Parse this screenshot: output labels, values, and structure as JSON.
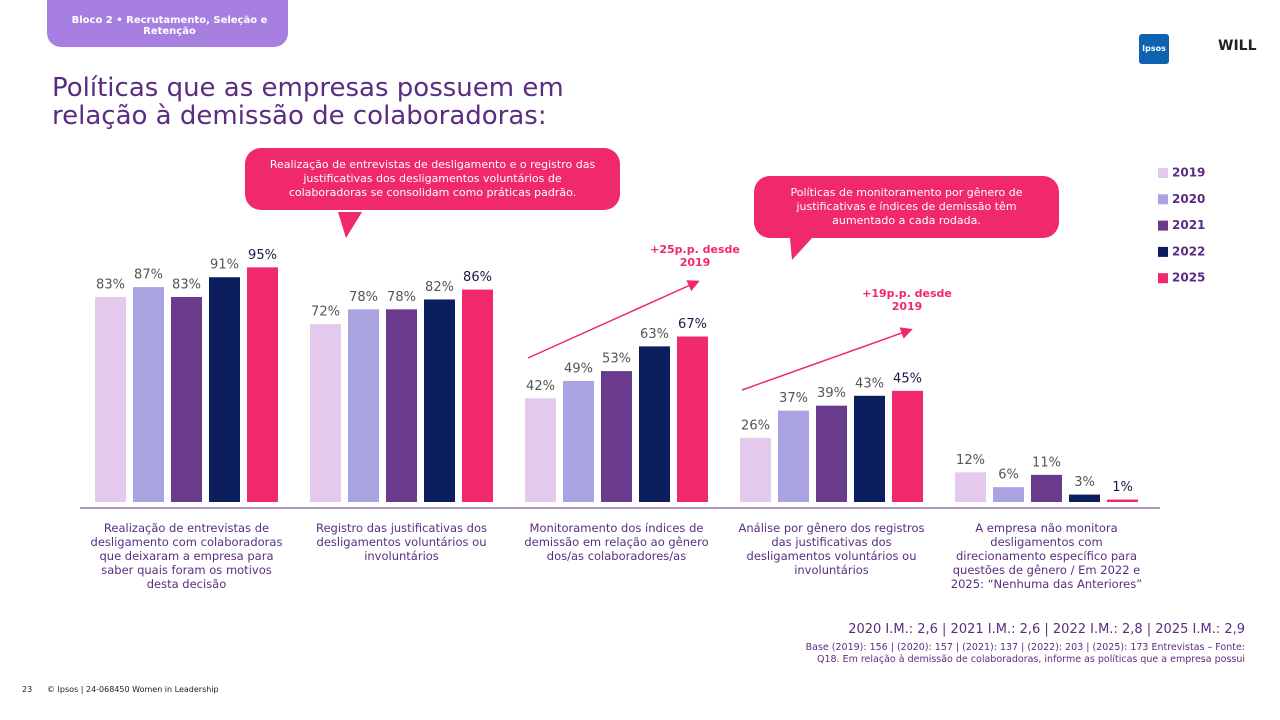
{
  "header": {
    "section": "Bloco 2 • Recrutamento, Seleção e Retenção",
    "logos": [
      "Ipsos",
      "WILL"
    ]
  },
  "chart_data": {
    "type": "bar",
    "title": "Políticas que as empresas possuem em relação à demissão de colaboradoras:",
    "categories": [
      "Realização de entrevistas de desligamento com colaboradoras que deixaram a empresa para saber quais foram os motivos desta decisão",
      "Registro das justificativas dos desligamentos voluntários ou involuntários",
      "Monitoramento dos índices de demissão em relação ao gênero dos/as colaboradores/as",
      "Análise por gênero dos registros das justificativas dos desligamentos voluntários ou involuntários",
      "A empresa não monitora desligamentos com direcionamento específico para questões de gênero / Em 2022 e 2025: “Nenhuma das Anteriores”"
    ],
    "series": [
      {
        "name": "2019",
        "color": "#e3c9ec",
        "values": [
          83,
          72,
          42,
          26,
          12
        ],
        "value_labels": [
          "83%",
          "72%",
          "42%",
          "26%",
          "12%"
        ]
      },
      {
        "name": "2020",
        "color": "#a9a4e1",
        "values": [
          87,
          78,
          49,
          37,
          6
        ],
        "value_labels": [
          "87%",
          "78%",
          "49%",
          "37%",
          "6%"
        ]
      },
      {
        "name": "2021",
        "color": "#6a3a8d",
        "values": [
          83,
          78,
          53,
          39,
          11
        ],
        "value_labels": [
          "83%",
          "78%",
          "53%",
          "39%",
          "11%"
        ]
      },
      {
        "name": "2022",
        "color": "#0c1e5e",
        "values": [
          91,
          82,
          63,
          43,
          3
        ],
        "value_labels": [
          "91%",
          "82%",
          "63%",
          "43%",
          "3%"
        ]
      },
      {
        "name": "2025",
        "color": "#f0286e",
        "values": [
          95,
          86,
          67,
          45,
          1
        ],
        "value_labels": [
          "95%",
          "86%",
          "67%",
          "45%",
          "1%"
        ]
      }
    ],
    "ylim": [
      0,
      100
    ],
    "legend": "right",
    "callouts": [
      "Realização de entrevistas de desligamento e o registro das justificativas dos desligamentos voluntários de colaboradoras se consolidam como práticas padrão.",
      "Políticas de monitoramento por gênero de justificativas e índices de demissão têm aumentado a cada rodada."
    ],
    "annotations": [
      "+25p.p. desde 2019",
      "+19p.p. desde 2019"
    ]
  },
  "footer": {
    "im": "2020 I.M.: 2,6 | 2021 I.M.: 2,6 | 2022 I.M.: 2,8 | 2025 I.M.: 2,9",
    "base": "Base (2019): 156 | (2020): 157 | (2021): 137 | (2022): 203 | (2025): 173 Entrevistas – Fonte: Q18. Em relação à demissão de colaboradoras, informe as políticas que a empresa possui",
    "page": "23",
    "copyright": "© Ipsos | 24-068450 Women in Leadership"
  }
}
